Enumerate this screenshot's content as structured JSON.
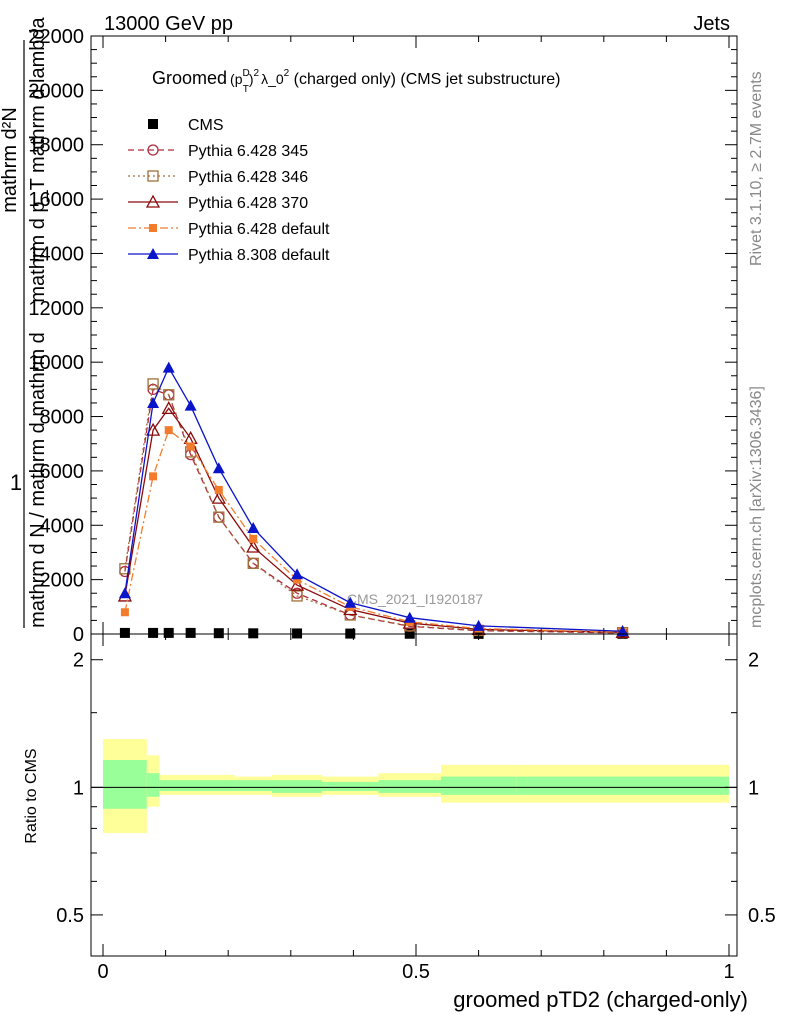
{
  "header": {
    "energy_label": "13000 GeV pp",
    "jets_label": "Jets",
    "rivet_label": "Rivet 3.1.10, ≥ 2.7M events",
    "mcplots_label": "mcplots.cern.ch [arXiv:1306.3436]",
    "watermark": "CMS_2021_I1920187"
  },
  "chart_data": [
    {
      "type": "scatter",
      "title_prefix": "Groomed",
      "title_formula": "(p",
      "title_sup": "D",
      "title_sub": "T",
      "title_rest": ")",
      "title_sup2": "2",
      "title_lambda": "λ_0",
      "title_sup3": "2",
      "title_suffix": " (charged only) (CMS jet substructure)",
      "ylabel_lines": [
        "mathrm d²N",
        "mathrm d p_T mathrm d lambda"
      ],
      "ylabel_numer": "1",
      "ylabel_denom": "mathrm d N / mathrm d mathrm d",
      "ylim": [
        0,
        22000
      ],
      "yticks": [
        0,
        2000,
        4000,
        6000,
        8000,
        10000,
        12000,
        14000,
        16000,
        18000,
        20000,
        22000
      ],
      "ytick_labels": [
        "0",
        "2000",
        "4000",
        "6000",
        "8000",
        "10000",
        "12000",
        "14000",
        "16000",
        "18000",
        "20000",
        "22000"
      ],
      "xlim": [
        0,
        1
      ],
      "x": [
        0.035,
        0.08,
        0.105,
        0.14,
        0.185,
        0.24,
        0.31,
        0.395,
        0.49,
        0.6,
        0.83
      ],
      "legend_position": "top-left",
      "series": [
        {
          "name": "CMS",
          "color": "#000000",
          "marker": "square-filled",
          "line": "none",
          "values": [
            40,
            40,
            40,
            40,
            30,
            25,
            20,
            15,
            10,
            5,
            2
          ]
        },
        {
          "name": "Pythia 6.428 345",
          "color": "#b02c3e",
          "marker": "circle-open",
          "line": "dashed",
          "values": [
            2300,
            9000,
            8800,
            6600,
            4300,
            2600,
            1500,
            700,
            280,
            120,
            40
          ]
        },
        {
          "name": "Pythia 6.428 346",
          "color": "#a07038",
          "marker": "square-open",
          "line": "dotted",
          "values": [
            2400,
            9200,
            8800,
            6700,
            4300,
            2600,
            1400,
            700,
            300,
            130,
            50
          ]
        },
        {
          "name": "Pythia 6.428 370",
          "color": "#8b0a0a",
          "marker": "triangle-open",
          "line": "solid",
          "values": [
            1400,
            7500,
            8300,
            7200,
            5000,
            3200,
            1800,
            900,
            400,
            170,
            60
          ]
        },
        {
          "name": "Pythia 6.428 default",
          "color": "#f27c2c",
          "marker": "square-filled-small",
          "line": "dashdot",
          "values": [
            800,
            5800,
            7500,
            6900,
            5300,
            3500,
            2000,
            1000,
            450,
            200,
            70
          ]
        },
        {
          "name": "Pythia 8.308 default",
          "color": "#0a14c8",
          "marker": "triangle-filled",
          "line": "solid",
          "values": [
            1500,
            8500,
            9800,
            8400,
            6100,
            3900,
            2200,
            1150,
            600,
            300,
            100
          ]
        }
      ]
    },
    {
      "type": "area",
      "ylabel": "Ratio to CMS",
      "xlabel": "groomed pTD2 (charged-only)",
      "ylim": [
        0.4,
        2.3
      ],
      "yscale": "log",
      "yticks": [
        0.5,
        1,
        2
      ],
      "ytick_labels": [
        "0.5",
        "1",
        "2"
      ],
      "xlim": [
        0,
        1
      ],
      "xticks": [
        0,
        0.5,
        1
      ],
      "xtick_labels": [
        "0",
        "0.5",
        "1"
      ],
      "reference_line": 1,
      "bins": [
        0,
        0.07,
        0.09,
        0.21,
        0.27,
        0.35,
        0.44,
        0.54,
        0.66,
        1.0
      ],
      "bins_start": 0,
      "band_outer": {
        "color": "#ffff99",
        "lo": [
          0.78,
          0.9,
          0.96,
          0.96,
          0.95,
          0.96,
          0.95,
          0.92,
          0.92,
          0.82
        ],
        "hi": [
          1.3,
          1.19,
          1.07,
          1.06,
          1.07,
          1.06,
          1.08,
          1.13,
          1.13,
          1.28
        ]
      },
      "band_inner": {
        "color": "#99ff99",
        "lo": [
          0.89,
          0.95,
          0.98,
          0.98,
          0.97,
          0.98,
          0.97,
          0.96,
          0.96,
          0.91
        ],
        "hi": [
          1.16,
          1.08,
          1.04,
          1.04,
          1.04,
          1.03,
          1.04,
          1.06,
          1.06,
          1.15
        ]
      }
    }
  ]
}
